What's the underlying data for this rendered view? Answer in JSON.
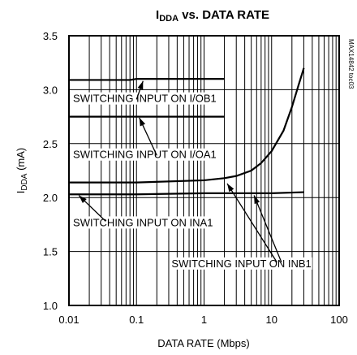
{
  "chart_data": {
    "type": "line",
    "title": "IDDA vs. DATA RATE",
    "title_main": "I",
    "title_sub": "DDA",
    "title_rest": " vs. DATA RATE",
    "xlabel": "DATA RATE (Mbps)",
    "ylabel_main": "I",
    "ylabel_sub": "DDA",
    "ylabel_rest": " (mA)",
    "xscale": "log",
    "xlim": [
      0.01,
      100
    ],
    "ylim": [
      1.0,
      3.5
    ],
    "xticks": [
      {
        "v": 0.01,
        "label": "0.01"
      },
      {
        "v": 0.1,
        "label": "0.1"
      },
      {
        "v": 1,
        "label": "1"
      },
      {
        "v": 10,
        "label": "10"
      },
      {
        "v": 100,
        "label": "100"
      }
    ],
    "yticks": [
      {
        "v": 1.0,
        "label": "1.0"
      },
      {
        "v": 1.5,
        "label": "1.5"
      },
      {
        "v": 2.0,
        "label": "2.0"
      },
      {
        "v": 2.5,
        "label": "2.5"
      },
      {
        "v": 3.0,
        "label": "3.0"
      },
      {
        "v": 3.5,
        "label": "3.5"
      }
    ],
    "grid": true,
    "side_note": "MAX14842 toc03",
    "series": [
      {
        "x": [
          0.01,
          0.08,
          0.1,
          0.15,
          0.3,
          0.5,
          1,
          2
        ],
        "y": [
          3.09,
          3.09,
          3.1,
          3.1,
          3.1,
          3.1,
          3.1,
          3.1
        ]
      },
      {
        "x": [
          0.01,
          0.1,
          0.5,
          1,
          2
        ],
        "y": [
          2.75,
          2.75,
          2.75,
          2.75,
          2.75
        ]
      },
      {
        "x": [
          0.01,
          0.1,
          1,
          2,
          3,
          5,
          7,
          10,
          15,
          20,
          25,
          30
        ],
        "y": [
          2.14,
          2.14,
          2.16,
          2.18,
          2.2,
          2.25,
          2.32,
          2.43,
          2.62,
          2.84,
          3.04,
          3.2
        ]
      },
      {
        "x": [
          0.01,
          0.1,
          1,
          10,
          30
        ],
        "y": [
          2.03,
          2.03,
          2.04,
          2.04,
          2.05
        ]
      }
    ],
    "annotations": [
      {
        "text": "SWITCHING INPUT ON I/OB1",
        "text_x": 0.0115,
        "text_y": 2.885,
        "arrow_from": [
          0.1,
          2.91
        ],
        "arrow_to": [
          0.125,
          3.08
        ]
      },
      {
        "text": "SWITCHING INPUT ON I/OA1",
        "text_x": 0.0115,
        "text_y": 2.365,
        "arrow_from": [
          0.2,
          2.39
        ],
        "arrow_to": [
          0.11,
          2.74
        ]
      },
      {
        "text": "SWITCHING INPUT ON INA1",
        "text_x": 0.0115,
        "text_y": 1.735,
        "arrow_from": [
          0.035,
          1.78
        ],
        "arrow_to": [
          0.014,
          2.02
        ]
      },
      {
        "text": "SWITCHING INPUT ON INB1",
        "text_x": 0.33,
        "text_y": 1.355,
        "arrow_from": [
          12,
          1.4
        ],
        "arrow_to": [
          2.2,
          2.13
        ],
        "arrow2_from": [
          14,
          1.4
        ],
        "arrow2_to": [
          5.5,
          2.02
        ]
      }
    ]
  }
}
